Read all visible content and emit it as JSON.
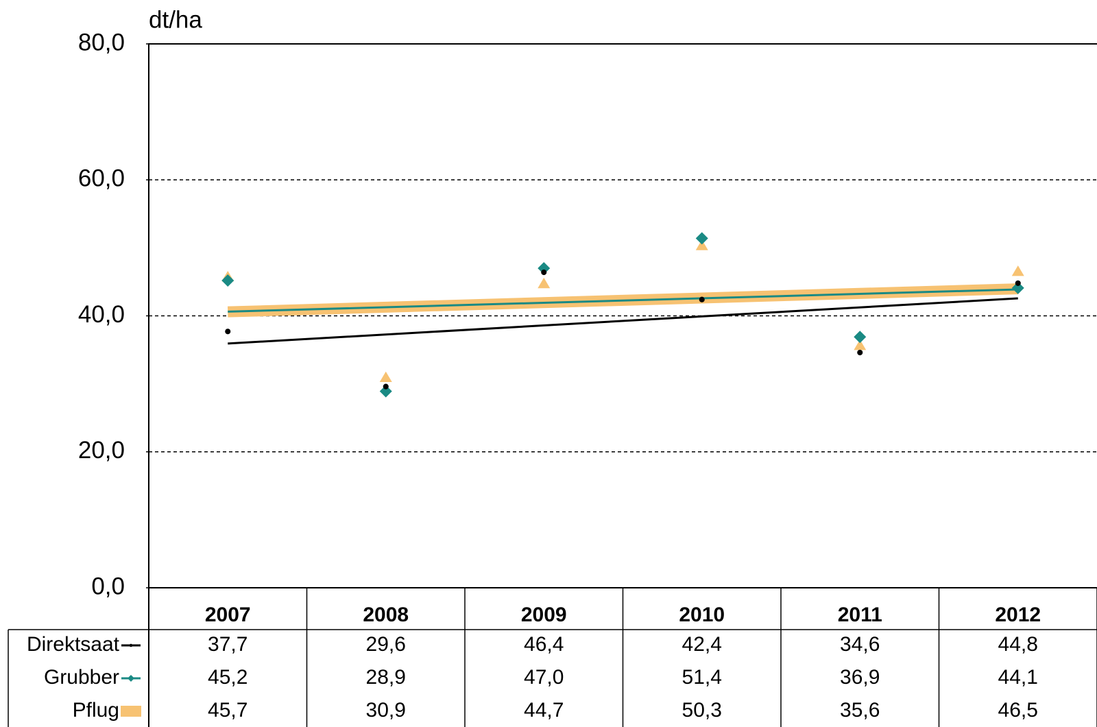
{
  "chart_data": {
    "type": "scatter-trend",
    "ylabel": "dt/ha",
    "categories": [
      "2007",
      "2008",
      "2009",
      "2010",
      "2011",
      "2012"
    ],
    "series": [
      {
        "name": "Direktsaat",
        "color": "#000000",
        "marker": "dot",
        "values": [
          37.7,
          29.6,
          46.4,
          42.4,
          34.6,
          44.8
        ],
        "value_labels": [
          "37,7",
          "29,6",
          "46,4",
          "42,4",
          "34,6",
          "44,8"
        ]
      },
      {
        "name": "Grubber",
        "color": "#1a8a84",
        "marker": "diamond",
        "values": [
          45.2,
          28.9,
          47.0,
          51.4,
          36.9,
          44.1
        ],
        "value_labels": [
          "45,2",
          "28,9",
          "47,0",
          "51,4",
          "36,9",
          "44,1"
        ]
      },
      {
        "name": "Pflug",
        "color": "#f7c272",
        "marker": "triangle",
        "values": [
          45.7,
          30.9,
          44.7,
          50.3,
          35.6,
          46.5
        ],
        "value_labels": [
          "45,7",
          "30,9",
          "44,7",
          "50,3",
          "35,6",
          "46,5"
        ]
      }
    ],
    "ylim": [
      0,
      80
    ],
    "yticks": [
      {
        "value": 0,
        "label": "0,0"
      },
      {
        "value": 20,
        "label": "20,0"
      },
      {
        "value": 40,
        "label": "40,0"
      },
      {
        "value": 60,
        "label": "60,0"
      },
      {
        "value": 80,
        "label": "80,0"
      }
    ],
    "grid": true,
    "trendlines": true
  }
}
